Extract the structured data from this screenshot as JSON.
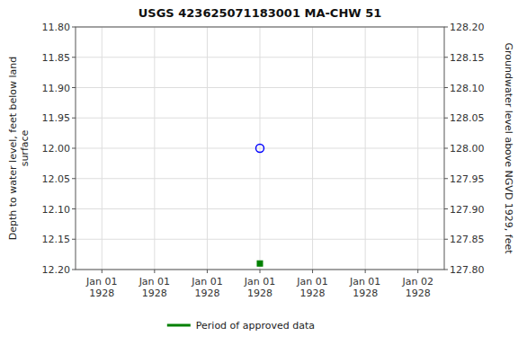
{
  "chart_data": {
    "type": "scatter",
    "title": "USGS 423625071183001 MA-CHW   51",
    "ylabel": "Depth to water level, feet below land\n surface",
    "y2label": "Groundwater level above NGVD 1929, feet",
    "categories": [
      "Jan 01\n1928",
      "Jan 01\n1928",
      "Jan 01\n1928",
      "Jan 01\n1928",
      "Jan 01\n1928",
      "Jan 01\n1928",
      "Jan 02\n1928"
    ],
    "series": [
      {
        "name": "Period of approved data",
        "color": "#008000",
        "marker": "square",
        "values": [
          null,
          null,
          null,
          12.19,
          null,
          null,
          null
        ]
      },
      {
        "color": "#0000ff",
        "marker": "open-circle",
        "values": [
          null,
          null,
          null,
          12.0,
          null,
          null,
          null
        ]
      }
    ],
    "ylim": [
      12.2,
      11.8
    ],
    "yticks": [
      {
        "value": 11.8,
        "label": "11.80"
      },
      11.85,
      {
        "value": 11.9,
        "label": "11.90"
      },
      11.95,
      {
        "value": 12.0,
        "label": "12.00"
      },
      12.05,
      {
        "value": 12.1,
        "label": "12.10"
      },
      12.15,
      {
        "value": 12.2,
        "label": "12.20"
      }
    ],
    "y2lim": [
      127.8,
      128.2
    ],
    "y2ticks": [
      {
        "value": 128.2,
        "label": "128.20"
      },
      128.15,
      {
        "value": 128.1,
        "label": "128.10"
      },
      128.05,
      {
        "value": 128.0,
        "label": "128.00"
      },
      127.95,
      {
        "value": 127.9,
        "label": "127.90"
      },
      127.85,
      {
        "value": 127.8,
        "label": "127.80"
      }
    ],
    "grid": true,
    "legend": "bottom"
  }
}
